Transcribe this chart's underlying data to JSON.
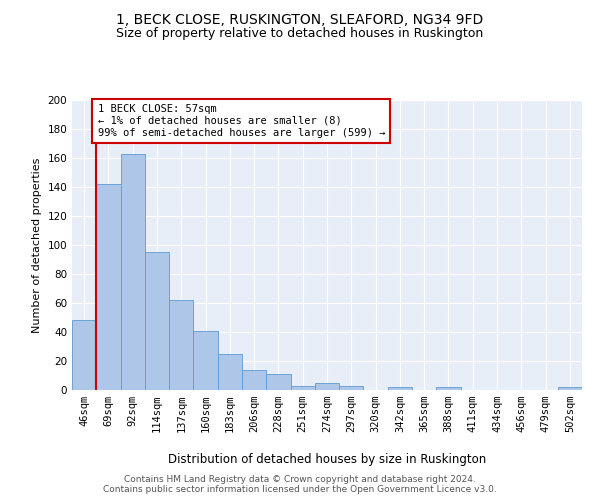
{
  "title": "1, BECK CLOSE, RUSKINGTON, SLEAFORD, NG34 9FD",
  "subtitle": "Size of property relative to detached houses in Ruskington",
  "xlabel": "Distribution of detached houses by size in Ruskington",
  "ylabel": "Number of detached properties",
  "categories": [
    "46sqm",
    "69sqm",
    "92sqm",
    "114sqm",
    "137sqm",
    "160sqm",
    "183sqm",
    "206sqm",
    "228sqm",
    "251sqm",
    "274sqm",
    "297sqm",
    "320sqm",
    "342sqm",
    "365sqm",
    "388sqm",
    "411sqm",
    "434sqm",
    "456sqm",
    "479sqm",
    "502sqm"
  ],
  "values": [
    48,
    142,
    163,
    95,
    62,
    41,
    25,
    14,
    11,
    3,
    5,
    3,
    0,
    2,
    0,
    2,
    0,
    0,
    0,
    0,
    2
  ],
  "bar_color": "#aec6e8",
  "bar_edge_color": "#5b9bd5",
  "annotation_text": "1 BECK CLOSE: 57sqm\n← 1% of detached houses are smaller (8)\n99% of semi-detached houses are larger (599) →",
  "annotation_box_color": "#ffffff",
  "annotation_box_edge_color": "#cc0000",
  "ylim": [
    0,
    200
  ],
  "yticks": [
    0,
    20,
    40,
    60,
    80,
    100,
    120,
    140,
    160,
    180,
    200
  ],
  "vline_color": "#cc0000",
  "bg_color": "#e8eef7",
  "footer": "Contains HM Land Registry data © Crown copyright and database right 2024.\nContains public sector information licensed under the Open Government Licence v3.0.",
  "title_fontsize": 10,
  "subtitle_fontsize": 9,
  "xlabel_fontsize": 8.5,
  "ylabel_fontsize": 8,
  "tick_fontsize": 7.5,
  "footer_fontsize": 6.5,
  "annotation_fontsize": 7.5
}
